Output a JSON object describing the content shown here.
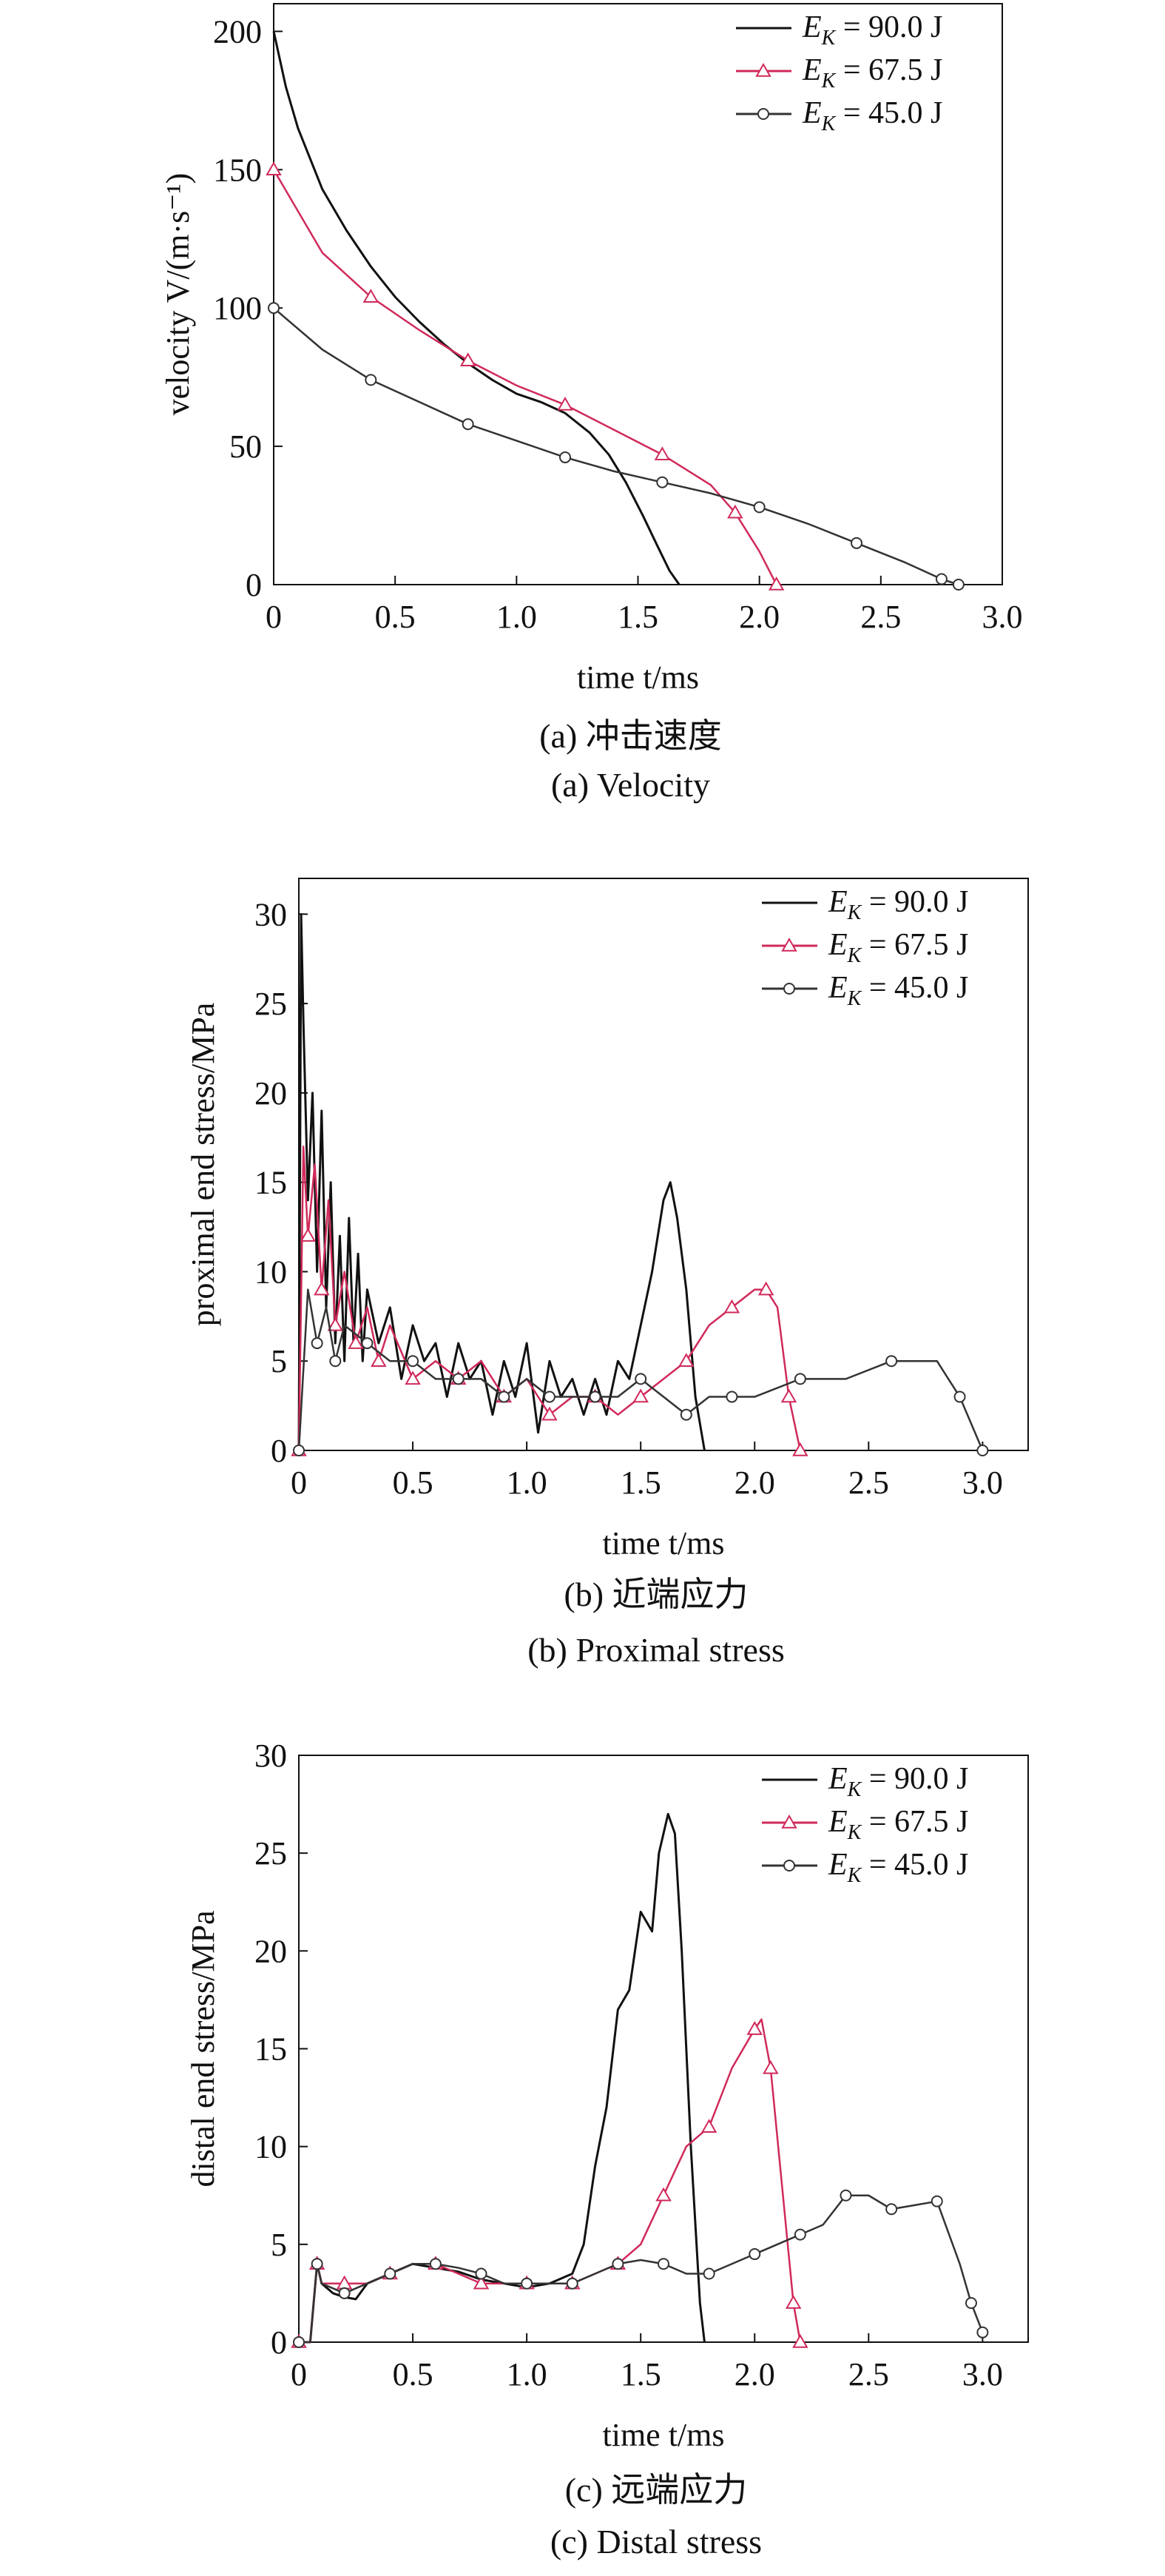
{
  "chart_data": [
    {
      "type": "line",
      "xlabel": "time t/ms",
      "ylabel": "velocity V/(m·s⁻¹)",
      "xlim": [
        0,
        3.0
      ],
      "ylim": [
        0,
        210
      ],
      "xticks": [
        "0",
        "0.5",
        "1.0",
        "1.5",
        "2.0",
        "2.5",
        "3.0"
      ],
      "yticks": [
        "0",
        "50",
        "100",
        "150",
        "200"
      ],
      "caption_cn": "(a) 冲击速度",
      "caption_en": "(a) Velocity",
      "legend_position": "top-right",
      "series": [
        {
          "name": "E_K = 90.0 J",
          "sub": "K",
          "label": "= 90.0 J",
          "color": "#111111",
          "marker": "none",
          "x": [
            0,
            0.05,
            0.1,
            0.2,
            0.3,
            0.4,
            0.5,
            0.6,
            0.7,
            0.8,
            0.9,
            1.0,
            1.1,
            1.2,
            1.3,
            1.38,
            1.45,
            1.52,
            1.58,
            1.63,
            1.67
          ],
          "y": [
            200,
            180,
            165,
            143,
            128,
            115,
            104,
            95,
            87,
            80,
            74,
            69,
            66,
            62,
            55,
            47,
            37,
            25,
            14,
            5,
            0
          ]
        },
        {
          "name": "E_K = 67.5 J",
          "sub": "K",
          "label": "= 67.5 J",
          "color": "#d02a5a",
          "marker": "triangle",
          "x": [
            0,
            0.2,
            0.4,
            0.6,
            0.8,
            1.0,
            1.2,
            1.4,
            1.6,
            1.8,
            1.9,
            2.0,
            2.07
          ],
          "y": [
            150,
            120,
            104,
            92,
            81,
            72,
            65,
            56,
            47,
            36,
            26,
            12,
            0
          ]
        },
        {
          "name": "E_K = 45.0 J",
          "sub": "K",
          "label": "= 45.0 J",
          "color": "#333333",
          "marker": "circle",
          "x": [
            0,
            0.2,
            0.4,
            0.6,
            0.8,
            1.0,
            1.2,
            1.4,
            1.6,
            1.8,
            2.0,
            2.2,
            2.4,
            2.6,
            2.75,
            2.82
          ],
          "y": [
            100,
            85,
            74,
            66,
            58,
            52,
            46,
            41,
            37,
            33,
            28,
            22,
            15,
            8,
            2,
            0
          ]
        }
      ]
    },
    {
      "type": "line",
      "xlabel": "time t/ms",
      "ylabel": "proximal end stress/MPa",
      "xlim": [
        0,
        3.2
      ],
      "ylim": [
        0,
        32
      ],
      "xticks": [
        "0",
        "0.5",
        "1.0",
        "1.5",
        "2.0",
        "2.5",
        "3.0"
      ],
      "yticks": [
        "0",
        "5",
        "10",
        "15",
        "20",
        "25",
        "30"
      ],
      "caption_cn": "(b) 近端应力",
      "caption_en": "(b) Proximal stress",
      "legend_position": "top-right",
      "series": [
        {
          "name": "E_K = 90.0 J",
          "sub": "K",
          "label": "= 90.0 J",
          "color": "#111111",
          "marker": "none",
          "x": [
            0,
            0.01,
            0.02,
            0.04,
            0.06,
            0.08,
            0.1,
            0.12,
            0.14,
            0.16,
            0.18,
            0.2,
            0.22,
            0.24,
            0.26,
            0.28,
            0.3,
            0.35,
            0.4,
            0.45,
            0.5,
            0.55,
            0.6,
            0.65,
            0.7,
            0.75,
            0.8,
            0.85,
            0.9,
            0.95,
            1.0,
            1.05,
            1.1,
            1.15,
            1.2,
            1.25,
            1.3,
            1.35,
            1.4,
            1.45,
            1.5,
            1.55,
            1.6,
            1.63,
            1.66,
            1.7,
            1.74,
            1.78
          ],
          "y": [
            0,
            30,
            24,
            14,
            20,
            10,
            19,
            8,
            15,
            6,
            12,
            5,
            13,
            6,
            11,
            5,
            9,
            6,
            8,
            4,
            7,
            5,
            6,
            3,
            6,
            4,
            5,
            2,
            5,
            3,
            6,
            1,
            5,
            3,
            4,
            2,
            4,
            2,
            5,
            4,
            7,
            10,
            14,
            15,
            13,
            9,
            3,
            0
          ]
        },
        {
          "name": "E_K = 67.5 J",
          "sub": "K",
          "label": "= 67.5 J",
          "color": "#d02a5a",
          "marker": "triangle",
          "x": [
            0,
            0.02,
            0.04,
            0.07,
            0.1,
            0.13,
            0.16,
            0.2,
            0.25,
            0.3,
            0.35,
            0.4,
            0.5,
            0.6,
            0.7,
            0.8,
            0.9,
            1.0,
            1.1,
            1.2,
            1.3,
            1.4,
            1.5,
            1.6,
            1.7,
            1.8,
            1.9,
            2.0,
            2.05,
            2.1,
            2.15,
            2.2
          ],
          "y": [
            0,
            17,
            12,
            16,
            9,
            14,
            7,
            10,
            6,
            8,
            5,
            7,
            4,
            5,
            4,
            5,
            3,
            4,
            2,
            3,
            3,
            2,
            3,
            4,
            5,
            7,
            8,
            9,
            9,
            8,
            3,
            0
          ]
        },
        {
          "name": "E_K = 45.0 J",
          "sub": "K",
          "label": "= 45.0 J",
          "color": "#333333",
          "marker": "circle",
          "x": [
            0,
            0.04,
            0.08,
            0.12,
            0.16,
            0.2,
            0.3,
            0.4,
            0.5,
            0.6,
            0.7,
            0.8,
            0.9,
            1.0,
            1.1,
            1.2,
            1.3,
            1.4,
            1.5,
            1.6,
            1.7,
            1.8,
            1.9,
            2.0,
            2.2,
            2.4,
            2.6,
            2.8,
            2.9,
            3.0
          ],
          "y": [
            0,
            9,
            6,
            8,
            5,
            7,
            6,
            5,
            5,
            4,
            4,
            4,
            3,
            4,
            3,
            3,
            3,
            3,
            4,
            3,
            2,
            3,
            3,
            3,
            4,
            4,
            5,
            5,
            3,
            0
          ]
        }
      ]
    },
    {
      "type": "line",
      "xlabel": "time t/ms",
      "ylabel": "distal end stress/MPa",
      "xlim": [
        0,
        3.2
      ],
      "ylim": [
        0,
        30
      ],
      "xticks": [
        "0",
        "0.5",
        "1.0",
        "1.5",
        "2.0",
        "2.5",
        "3.0"
      ],
      "yticks": [
        "0",
        "5",
        "10",
        "15",
        "20",
        "25",
        "30"
      ],
      "caption_cn": "(c) 远端应力",
      "caption_en": "(c) Distal stress",
      "legend_position": "top-right",
      "series": [
        {
          "name": "E_K = 90.0 J",
          "sub": "K",
          "label": "= 90.0 J",
          "color": "#111111",
          "marker": "none",
          "x": [
            0,
            0.05,
            0.08,
            0.1,
            0.15,
            0.2,
            0.25,
            0.3,
            0.4,
            0.5,
            0.6,
            0.7,
            0.8,
            0.9,
            1.0,
            1.1,
            1.2,
            1.25,
            1.3,
            1.35,
            1.4,
            1.45,
            1.5,
            1.55,
            1.58,
            1.62,
            1.65,
            1.68,
            1.72,
            1.76,
            1.78
          ],
          "y": [
            0,
            0,
            4,
            3,
            2.5,
            2.3,
            2.2,
            3,
            3.5,
            4,
            3.8,
            3.6,
            3.2,
            3,
            2.8,
            3,
            3.5,
            5,
            9,
            12,
            17,
            18,
            22,
            21,
            25,
            27,
            26,
            20,
            10,
            2,
            0
          ]
        },
        {
          "name": "E_K = 67.5 J",
          "sub": "K",
          "label": "= 67.5 J",
          "color": "#d02a5a",
          "marker": "triangle",
          "x": [
            0,
            0.05,
            0.08,
            0.1,
            0.2,
            0.3,
            0.4,
            0.5,
            0.6,
            0.7,
            0.8,
            0.9,
            1.0,
            1.1,
            1.2,
            1.3,
            1.4,
            1.5,
            1.6,
            1.7,
            1.8,
            1.9,
            2.0,
            2.03,
            2.07,
            2.12,
            2.17,
            2.2
          ],
          "y": [
            0,
            0,
            4,
            3,
            3,
            3,
            3.5,
            4,
            4,
            3.5,
            3,
            3,
            3,
            3,
            3,
            3.5,
            4,
            5,
            7.5,
            10,
            11,
            14,
            16,
            16.5,
            14,
            8,
            2,
            0
          ]
        },
        {
          "name": "E_K = 45.0 J",
          "sub": "K",
          "label": "= 45.0 J",
          "color": "#333333",
          "marker": "circle",
          "x": [
            0,
            0.05,
            0.08,
            0.1,
            0.2,
            0.3,
            0.4,
            0.5,
            0.6,
            0.7,
            0.8,
            0.9,
            1.0,
            1.1,
            1.2,
            1.3,
            1.4,
            1.5,
            1.6,
            1.7,
            1.8,
            1.9,
            2.0,
            2.1,
            2.2,
            2.3,
            2.4,
            2.5,
            2.6,
            2.7,
            2.8,
            2.9,
            2.95,
            3.0
          ],
          "y": [
            0,
            0,
            4,
            3,
            2.5,
            3,
            3.5,
            4,
            4,
            3.8,
            3.5,
            3,
            3,
            3,
            3,
            3.5,
            4,
            4.2,
            4,
            3.5,
            3.5,
            4,
            4.5,
            5,
            5.5,
            6,
            7.5,
            7.5,
            6.8,
            7,
            7.2,
            4,
            2,
            0.5
          ]
        }
      ]
    }
  ]
}
